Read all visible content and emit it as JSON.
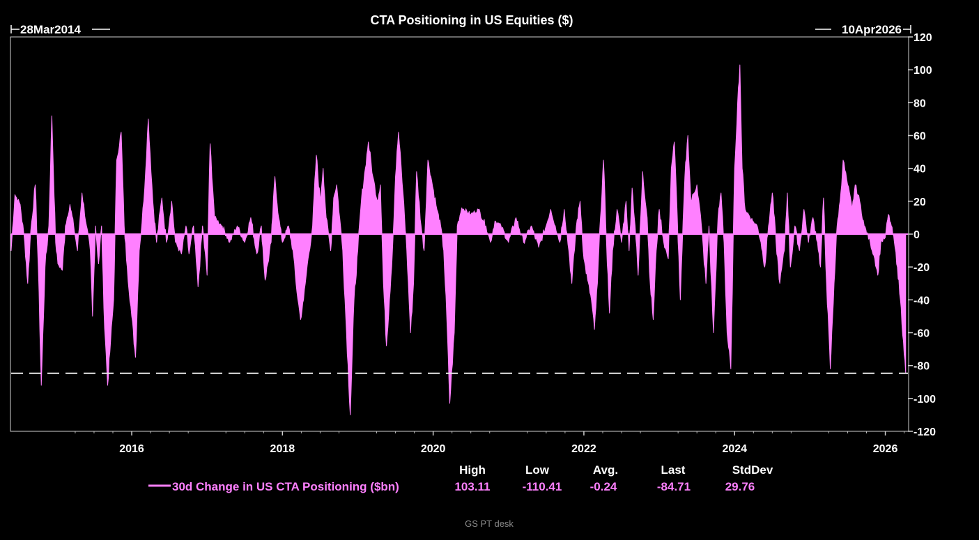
{
  "chart_data": {
    "type": "area",
    "title": "CTA Positioning in US Equities ($)",
    "start_label": "28Mar2014",
    "end_label": "10Apr2026",
    "x_range": [
      2014.4,
      2026.3
    ],
    "ylim": [
      -120,
      120
    ],
    "y_ticks": [
      120,
      100,
      80,
      60,
      40,
      20,
      0,
      -20,
      -40,
      -60,
      -80,
      -100,
      -120
    ],
    "x_ticks": [
      2016,
      2018,
      2020,
      2022,
      2024,
      2026
    ],
    "reference_line": -84.71,
    "series": [
      {
        "name": "30d Change in US CTA Positioning ($bn)",
        "color": "#ff80ff",
        "stats": {
          "High": "103.11",
          "Low": "-110.41",
          "Avg.": "-0.24",
          "Last": "-84.71",
          "StdDev": "29.76"
        },
        "keypoints": [
          [
            2014.4,
            -10
          ],
          [
            2014.45,
            24
          ],
          [
            2014.52,
            18
          ],
          [
            2014.58,
            -5
          ],
          [
            2014.62,
            -30
          ],
          [
            2014.66,
            2
          ],
          [
            2014.72,
            30
          ],
          [
            2014.76,
            -20
          ],
          [
            2014.8,
            -92
          ],
          [
            2014.85,
            -20
          ],
          [
            2014.9,
            5
          ],
          [
            2014.94,
            72
          ],
          [
            2014.99,
            -5
          ],
          [
            2015.02,
            -18
          ],
          [
            2015.08,
            -22
          ],
          [
            2015.12,
            5
          ],
          [
            2015.18,
            18
          ],
          [
            2015.23,
            5
          ],
          [
            2015.28,
            -10
          ],
          [
            2015.34,
            25
          ],
          [
            2015.4,
            5
          ],
          [
            2015.45,
            -10
          ],
          [
            2015.48,
            -50
          ],
          [
            2015.52,
            5
          ],
          [
            2015.56,
            -18
          ],
          [
            2015.6,
            5
          ],
          [
            2015.63,
            -45
          ],
          [
            2015.68,
            -92
          ],
          [
            2015.72,
            -65
          ],
          [
            2015.76,
            -40
          ],
          [
            2015.8,
            45
          ],
          [
            2015.86,
            62
          ],
          [
            2015.9,
            5
          ],
          [
            2015.94,
            -20
          ],
          [
            2016.0,
            -50
          ],
          [
            2016.05,
            -75
          ],
          [
            2016.1,
            -10
          ],
          [
            2016.16,
            20
          ],
          [
            2016.22,
            70
          ],
          [
            2016.28,
            20
          ],
          [
            2016.33,
            -5
          ],
          [
            2016.4,
            22
          ],
          [
            2016.46,
            -5
          ],
          [
            2016.53,
            20
          ],
          [
            2016.58,
            -5
          ],
          [
            2016.66,
            -12
          ],
          [
            2016.72,
            5
          ],
          [
            2016.76,
            -12
          ],
          [
            2016.82,
            5
          ],
          [
            2016.88,
            -32
          ],
          [
            2016.94,
            5
          ],
          [
            2017.0,
            -25
          ],
          [
            2017.04,
            55
          ],
          [
            2017.1,
            10
          ],
          [
            2017.2,
            5
          ],
          [
            2017.3,
            -5
          ],
          [
            2017.4,
            5
          ],
          [
            2017.5,
            -5
          ],
          [
            2017.58,
            10
          ],
          [
            2017.66,
            -12
          ],
          [
            2017.72,
            5
          ],
          [
            2017.77,
            -28
          ],
          [
            2017.85,
            -5
          ],
          [
            2017.9,
            35
          ],
          [
            2017.95,
            10
          ],
          [
            2018.0,
            -5
          ],
          [
            2018.08,
            5
          ],
          [
            2018.14,
            -10
          ],
          [
            2018.18,
            -30
          ],
          [
            2018.24,
            -52
          ],
          [
            2018.28,
            -40
          ],
          [
            2018.34,
            -15
          ],
          [
            2018.4,
            5
          ],
          [
            2018.45,
            48
          ],
          [
            2018.5,
            20
          ],
          [
            2018.54,
            40
          ],
          [
            2018.58,
            10
          ],
          [
            2018.64,
            -10
          ],
          [
            2018.68,
            22
          ],
          [
            2018.72,
            30
          ],
          [
            2018.76,
            10
          ],
          [
            2018.8,
            -10
          ],
          [
            2018.85,
            -60
          ],
          [
            2018.9,
            -110
          ],
          [
            2018.95,
            -40
          ],
          [
            2019.0,
            -10
          ],
          [
            2019.05,
            22
          ],
          [
            2019.1,
            40
          ],
          [
            2019.14,
            56
          ],
          [
            2019.2,
            35
          ],
          [
            2019.26,
            20
          ],
          [
            2019.3,
            30
          ],
          [
            2019.34,
            -30
          ],
          [
            2019.38,
            -68
          ],
          [
            2019.42,
            -40
          ],
          [
            2019.46,
            -10
          ],
          [
            2019.5,
            35
          ],
          [
            2019.54,
            62
          ],
          [
            2019.6,
            25
          ],
          [
            2019.65,
            -10
          ],
          [
            2019.7,
            -60
          ],
          [
            2019.74,
            -30
          ],
          [
            2019.78,
            38
          ],
          [
            2019.84,
            5
          ],
          [
            2019.88,
            -10
          ],
          [
            2019.93,
            45
          ],
          [
            2019.97,
            35
          ],
          [
            2020.05,
            15
          ],
          [
            2020.1,
            5
          ],
          [
            2020.14,
            -10
          ],
          [
            2020.18,
            -50
          ],
          [
            2020.22,
            -103
          ],
          [
            2020.28,
            -60
          ],
          [
            2020.32,
            5
          ],
          [
            2020.38,
            16
          ],
          [
            2020.5,
            12
          ],
          [
            2020.6,
            15
          ],
          [
            2020.7,
            5
          ],
          [
            2020.76,
            -5
          ],
          [
            2020.82,
            8
          ],
          [
            2020.9,
            5
          ],
          [
            2021.0,
            -5
          ],
          [
            2021.1,
            10
          ],
          [
            2021.2,
            -5
          ],
          [
            2021.3,
            5
          ],
          [
            2021.4,
            -8
          ],
          [
            2021.5,
            5
          ],
          [
            2021.56,
            15
          ],
          [
            2021.62,
            5
          ],
          [
            2021.68,
            -5
          ],
          [
            2021.74,
            15
          ],
          [
            2021.8,
            -10
          ],
          [
            2021.84,
            -30
          ],
          [
            2021.9,
            5
          ],
          [
            2021.95,
            20
          ],
          [
            2022.0,
            -15
          ],
          [
            2022.05,
            -28
          ],
          [
            2022.1,
            -40
          ],
          [
            2022.14,
            -58
          ],
          [
            2022.18,
            -30
          ],
          [
            2022.22,
            10
          ],
          [
            2022.26,
            45
          ],
          [
            2022.3,
            -5
          ],
          [
            2022.34,
            -48
          ],
          [
            2022.38,
            -10
          ],
          [
            2022.44,
            15
          ],
          [
            2022.5,
            -5
          ],
          [
            2022.56,
            20
          ],
          [
            2022.6,
            -10
          ],
          [
            2022.64,
            28
          ],
          [
            2022.68,
            5
          ],
          [
            2022.72,
            -25
          ],
          [
            2022.78,
            38
          ],
          [
            2022.84,
            10
          ],
          [
            2022.88,
            -30
          ],
          [
            2022.92,
            -52
          ],
          [
            2022.96,
            -10
          ],
          [
            2023.0,
            15
          ],
          [
            2023.06,
            -5
          ],
          [
            2023.12,
            -15
          ],
          [
            2023.16,
            40
          ],
          [
            2023.2,
            56
          ],
          [
            2023.24,
            10
          ],
          [
            2023.28,
            -40
          ],
          [
            2023.34,
            35
          ],
          [
            2023.38,
            60
          ],
          [
            2023.42,
            20
          ],
          [
            2023.5,
            30
          ],
          [
            2023.56,
            5
          ],
          [
            2023.62,
            -30
          ],
          [
            2023.66,
            5
          ],
          [
            2023.72,
            -60
          ],
          [
            2023.78,
            10
          ],
          [
            2023.82,
            25
          ],
          [
            2023.86,
            -5
          ],
          [
            2023.9,
            -60
          ],
          [
            2023.95,
            -82
          ],
          [
            2024.0,
            40
          ],
          [
            2024.04,
            80
          ],
          [
            2024.07,
            103
          ],
          [
            2024.1,
            40
          ],
          [
            2024.14,
            15
          ],
          [
            2024.24,
            8
          ],
          [
            2024.3,
            5
          ],
          [
            2024.35,
            -5
          ],
          [
            2024.4,
            -20
          ],
          [
            2024.45,
            5
          ],
          [
            2024.5,
            25
          ],
          [
            2024.55,
            -5
          ],
          [
            2024.6,
            -30
          ],
          [
            2024.66,
            -10
          ],
          [
            2024.7,
            25
          ],
          [
            2024.74,
            -20
          ],
          [
            2024.8,
            5
          ],
          [
            2024.86,
            -10
          ],
          [
            2024.92,
            15
          ],
          [
            2024.98,
            -5
          ],
          [
            2025.04,
            10
          ],
          [
            2025.1,
            -5
          ],
          [
            2025.14,
            -20
          ],
          [
            2025.18,
            22
          ],
          [
            2025.22,
            -30
          ],
          [
            2025.27,
            -82
          ],
          [
            2025.32,
            -30
          ],
          [
            2025.36,
            5
          ],
          [
            2025.4,
            20
          ],
          [
            2025.44,
            45
          ],
          [
            2025.5,
            30
          ],
          [
            2025.56,
            15
          ],
          [
            2025.6,
            30
          ],
          [
            2025.66,
            20
          ],
          [
            2025.72,
            5
          ],
          [
            2025.8,
            -5
          ],
          [
            2025.86,
            -15
          ],
          [
            2025.9,
            -25
          ],
          [
            2025.94,
            -5
          ],
          [
            2026.0,
            -2
          ],
          [
            2026.04,
            12
          ],
          [
            2026.08,
            5
          ],
          [
            2026.12,
            -5
          ],
          [
            2026.16,
            -20
          ],
          [
            2026.2,
            -40
          ],
          [
            2026.24,
            -65
          ],
          [
            2026.27,
            -84.71
          ]
        ]
      }
    ]
  },
  "footer": {
    "credit": "GS PT desk"
  }
}
